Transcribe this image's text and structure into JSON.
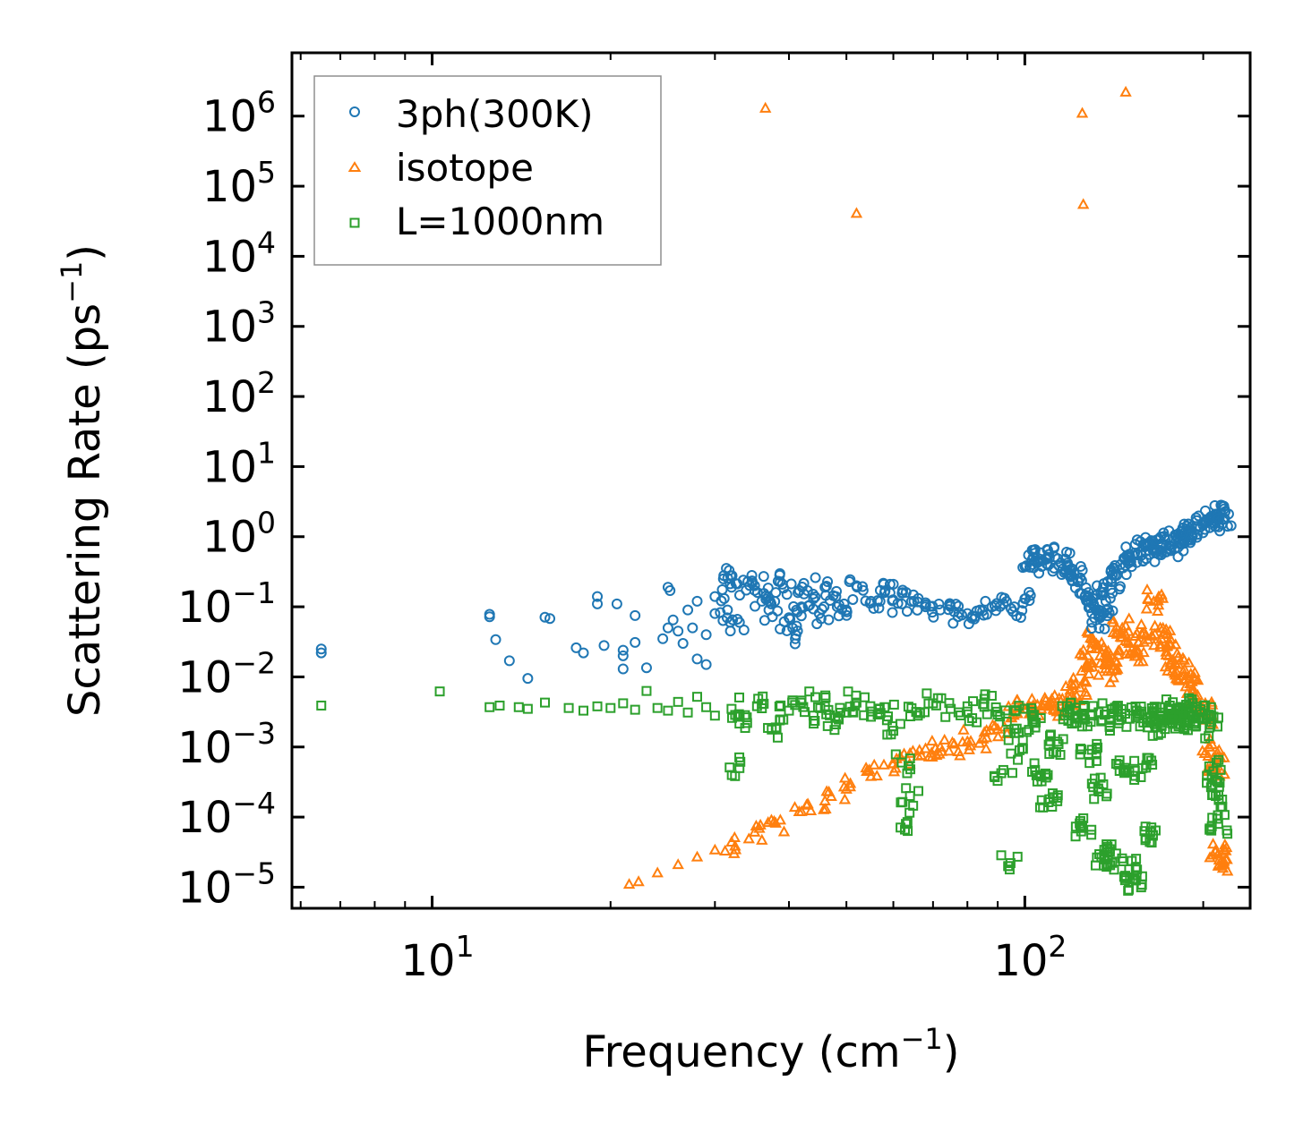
{
  "chart_data": {
    "type": "scatter",
    "title": "",
    "xlabel": "Frequency (cm",
    "xlabel_sup": "−1",
    "xlabel_end": ")",
    "ylabel": "Scattering Rate (ps",
    "ylabel_sup": "−1",
    "ylabel_end": ")",
    "xscale": "log",
    "yscale": "log",
    "xlim": [
      5.8,
      240
    ],
    "ylim": [
      5e-06,
      8000000
    ],
    "legend_position": "top-left",
    "x_ticks": [
      {
        "value": 10,
        "base": "10",
        "exp": "1"
      },
      {
        "value": 100,
        "base": "10",
        "exp": "2"
      }
    ],
    "y_ticks": [
      {
        "value": 1e-05,
        "base": "10",
        "exp": "−5"
      },
      {
        "value": 0.0001,
        "base": "10",
        "exp": "−4"
      },
      {
        "value": 0.001,
        "base": "10",
        "exp": "−3"
      },
      {
        "value": 0.01,
        "base": "10",
        "exp": "−2"
      },
      {
        "value": 0.1,
        "base": "10",
        "exp": "−1"
      },
      {
        "value": 1,
        "base": "10",
        "exp": "0"
      },
      {
        "value": 10,
        "base": "10",
        "exp": "1"
      },
      {
        "value": 100,
        "base": "10",
        "exp": "2"
      },
      {
        "value": 1000,
        "base": "10",
        "exp": "3"
      },
      {
        "value": 10000,
        "base": "10",
        "exp": "4"
      },
      {
        "value": 100000,
        "base": "10",
        "exp": "5"
      },
      {
        "value": 1000000,
        "base": "10",
        "exp": "6"
      }
    ],
    "series": [
      {
        "name": "3ph(300K)",
        "marker": "circle",
        "color": "#1f77b4",
        "points": [
          [
            6.5,
            0.025
          ],
          [
            6.5,
            0.022
          ],
          [
            12.5,
            0.078
          ],
          [
            12.5,
            0.072
          ],
          [
            12.8,
            0.034
          ],
          [
            13.5,
            0.017
          ],
          [
            14.5,
            0.0095
          ],
          [
            15.5,
            0.071
          ],
          [
            15.8,
            0.068
          ],
          [
            17.5,
            0.026
          ],
          [
            18,
            0.022
          ],
          [
            19,
            0.14
          ],
          [
            19,
            0.11
          ],
          [
            19.5,
            0.028
          ],
          [
            20.5,
            0.11
          ],
          [
            21,
            0.024
          ],
          [
            21,
            0.02
          ],
          [
            21,
            0.013
          ],
          [
            22,
            0.075
          ],
          [
            22,
            0.031
          ],
          [
            23,
            0.0135
          ],
          [
            24.5,
            0.035
          ],
          [
            25,
            0.05
          ],
          [
            25,
            0.19
          ],
          [
            25.2,
            0.17
          ],
          [
            25.5,
            0.065
          ],
          [
            26,
            0.045
          ],
          [
            26.5,
            0.03
          ],
          [
            27,
            0.09
          ],
          [
            27.5,
            0.05
          ],
          [
            28,
            0.12
          ],
          [
            28,
            0.018
          ],
          [
            29,
            0.015
          ],
          [
            29,
            0.04
          ],
          [
            30,
            0.14
          ],
          [
            30,
            0.08
          ],
          [
            31,
            0.25
          ],
          [
            31.5,
            0.09
          ],
          [
            32,
            0.19
          ],
          [
            33,
            0.06
          ],
          [
            33.5,
            0.24
          ],
          [
            35,
            0.2
          ],
          [
            36,
            0.12
          ],
          [
            37,
            0.09
          ],
          [
            38,
            0.16
          ],
          [
            39,
            0.21
          ],
          [
            40,
            0.07
          ],
          [
            41,
            0.035
          ],
          [
            42,
            0.1
          ],
          [
            43,
            0.17
          ],
          [
            44,
            0.13
          ],
          [
            45,
            0.08
          ],
          [
            46,
            0.19
          ],
          [
            48,
            0.14
          ],
          [
            50,
            0.09
          ],
          [
            52,
            0.2
          ],
          [
            55,
            0.12
          ],
          [
            58,
            0.16
          ],
          [
            60,
            0.21
          ],
          [
            62,
            0.11
          ],
          [
            65,
            0.12
          ],
          [
            68,
            0.1
          ],
          [
            72,
            0.09
          ],
          [
            76,
            0.085
          ],
          [
            80,
            0.08
          ],
          [
            84,
            0.09
          ],
          [
            88,
            0.1
          ],
          [
            92,
            0.11
          ],
          [
            96,
            0.1
          ],
          [
            100,
            0.13
          ],
          [
            103,
            0.4
          ],
          [
            106,
            0.48
          ],
          [
            110,
            0.5
          ],
          [
            115,
            0.42
          ],
          [
            120,
            0.35
          ],
          [
            124,
            0.26
          ],
          [
            128,
            0.16
          ],
          [
            131,
            0.1
          ],
          [
            134,
            0.07
          ],
          [
            137,
            0.12
          ],
          [
            140,
            0.25
          ],
          [
            145,
            0.4
          ],
          [
            150,
            0.5
          ],
          [
            155,
            0.55
          ],
          [
            160,
            0.62
          ],
          [
            165,
            0.7
          ],
          [
            170,
            0.8
          ],
          [
            175,
            0.75
          ],
          [
            180,
            0.9
          ],
          [
            185,
            1.1
          ],
          [
            190,
            1.2
          ],
          [
            195,
            1.4
          ],
          [
            200,
            1.6
          ],
          [
            205,
            1.8
          ],
          [
            210,
            2.1
          ],
          [
            215,
            1.5
          ]
        ]
      },
      {
        "name": "isotope",
        "marker": "triangle",
        "color": "#ff7f0e",
        "points": [
          [
            21.5,
            1.1e-05
          ],
          [
            22.3,
            1.2e-05
          ],
          [
            24,
            1.6e-05
          ],
          [
            26,
            2.1e-05
          ],
          [
            28,
            2.7e-05
          ],
          [
            30,
            3.4e-05
          ],
          [
            32,
            4.4e-05
          ],
          [
            35,
            6.1e-05
          ],
          [
            38,
            8.2e-05
          ],
          [
            42,
            0.00012
          ],
          [
            46,
            0.00017
          ],
          [
            50,
            0.00025
          ],
          [
            55,
            0.00038
          ],
          [
            60,
            0.00058
          ],
          [
            64,
            0.00081
          ],
          [
            68,
            0.00095
          ],
          [
            72,
            0.001
          ],
          [
            76,
            0.0011
          ],
          [
            80,
            0.0012
          ],
          [
            85,
            0.0013
          ],
          [
            90,
            0.0018
          ],
          [
            95,
            0.0026
          ],
          [
            100,
            0.0035
          ],
          [
            105,
            0.004
          ],
          [
            110,
            0.0038
          ],
          [
            115,
            0.0045
          ],
          [
            120,
            0.0055
          ],
          [
            124,
            0.007
          ],
          [
            127,
            0.015
          ],
          [
            130,
            0.035
          ],
          [
            134,
            0.02
          ],
          [
            138,
            0.012
          ],
          [
            142,
            0.017
          ],
          [
            146,
            0.05
          ],
          [
            150,
            0.03
          ],
          [
            155,
            0.022
          ],
          [
            160,
            0.04
          ],
          [
            165,
            0.12
          ],
          [
            170,
            0.035
          ],
          [
            175,
            0.02
          ],
          [
            180,
            0.015
          ],
          [
            185,
            0.012
          ],
          [
            190,
            0.008
          ],
          [
            195,
            0.005
          ],
          [
            200,
            0.003
          ],
          [
            205,
            0.001
          ],
          [
            210,
            0.0005
          ],
          [
            36.5,
            1300000
          ],
          [
            52,
            41000
          ],
          [
            125,
            1100000
          ],
          [
            125.5,
            55000
          ],
          [
            148,
            2200000
          ],
          [
            212,
            3e-05
          ],
          [
            212,
            2e-05
          ]
        ]
      },
      {
        "name": "L=1000nm",
        "marker": "square",
        "color": "#2ca02c",
        "points": [
          [
            6.5,
            0.0039
          ],
          [
            10.3,
            0.0062
          ],
          [
            12.5,
            0.0037
          ],
          [
            13,
            0.0039
          ],
          [
            14,
            0.0037
          ],
          [
            14.5,
            0.0035
          ],
          [
            15.5,
            0.0043
          ],
          [
            17,
            0.0036
          ],
          [
            18,
            0.0033
          ],
          [
            19,
            0.0038
          ],
          [
            20,
            0.0036
          ],
          [
            21,
            0.0042
          ],
          [
            22,
            0.0034
          ],
          [
            23,
            0.0063
          ],
          [
            24,
            0.0036
          ],
          [
            25,
            0.0033
          ],
          [
            26,
            0.0044
          ],
          [
            27,
            0.0031
          ],
          [
            28,
            0.0052
          ],
          [
            29,
            0.0037
          ],
          [
            30,
            0.0028
          ],
          [
            32,
            0.0035
          ],
          [
            33,
            0.0005
          ],
          [
            34,
            0.0022
          ],
          [
            36,
            0.0041
          ],
          [
            38,
            0.0019
          ],
          [
            40,
            0.0033
          ],
          [
            42,
            0.0046
          ],
          [
            44,
            0.0028
          ],
          [
            46,
            0.0038
          ],
          [
            48,
            0.0021
          ],
          [
            50,
            0.0031
          ],
          [
            52,
            0.0043
          ],
          [
            55,
            0.0027
          ],
          [
            58,
            0.0037
          ],
          [
            60,
            0.0017
          ],
          [
            62,
            0.0006
          ],
          [
            63,
            8e-05
          ],
          [
            64,
            0.0002
          ],
          [
            66,
            0.0028
          ],
          [
            70,
            0.0042
          ],
          [
            75,
            0.0035
          ],
          [
            80,
            0.0032
          ],
          [
            85,
            0.0041
          ],
          [
            90,
            0.0029
          ],
          [
            92,
            0.00047
          ],
          [
            94,
            2e-05
          ],
          [
            96,
            0.0018
          ],
          [
            98,
            0.0009
          ],
          [
            100,
            0.0035
          ],
          [
            103,
            0.0023
          ],
          [
            106,
            0.0004
          ],
          [
            110,
            0.00018
          ],
          [
            114,
            0.0011
          ],
          [
            118,
            0.0031
          ],
          [
            122,
            0.0026
          ],
          [
            125,
            7e-05
          ],
          [
            128,
            0.0008
          ],
          [
            130,
            0.0028
          ],
          [
            133,
            0.00025
          ],
          [
            136,
            2.8e-05
          ],
          [
            138,
            2.5e-05
          ],
          [
            140,
            0.003
          ],
          [
            144,
            0.0024
          ],
          [
            148,
            0.00045
          ],
          [
            150,
            1.8e-05
          ],
          [
            152,
            1.3e-05
          ],
          [
            155,
            0.0028
          ],
          [
            158,
            0.0005
          ],
          [
            160,
            5e-05
          ],
          [
            163,
            0.0026
          ],
          [
            166,
            0.0019
          ],
          [
            170,
            0.0031
          ],
          [
            175,
            0.0025
          ],
          [
            180,
            0.0033
          ],
          [
            185,
            0.0029
          ],
          [
            190,
            0.0023
          ],
          [
            195,
            0.0034
          ],
          [
            200,
            0.0026
          ],
          [
            205,
            0.0019
          ],
          [
            208,
            0.00045
          ],
          [
            210,
            0.0002
          ],
          [
            212,
            8e-05
          ]
        ]
      }
    ]
  }
}
